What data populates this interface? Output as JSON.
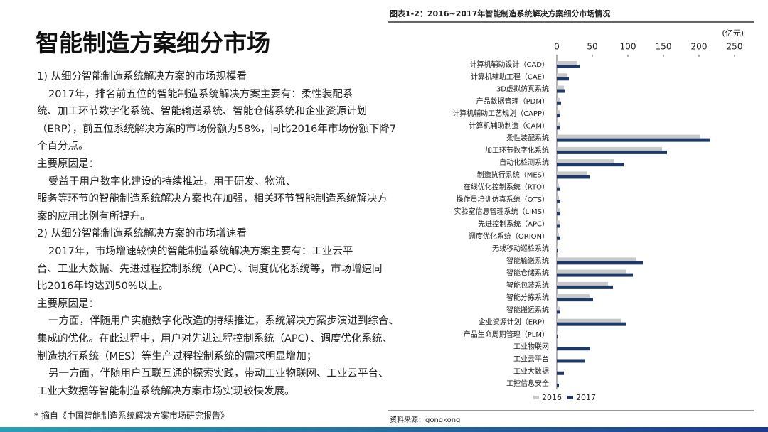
{
  "title": "智能制造方案细分市场",
  "body": {
    "lines": [
      "1) 从细分智能制造系统解决方案的市场规模看",
      "2017年，排名前五位的智能制造系统解决方案主要有：柔性装配系",
      "统、加工环节数字化系统、智能输送系统、智能仓储系统和企业资源计划",
      "（ERP），前五位系统解决方案的市场份额为58%，同比2016年市场份额下降7",
      "个百分点。",
      "主要原因是：",
      "受益于用户数字化建设的持续推进，用于研发、物流、",
      "服务等环节的智能制造系统解决方案也在加强，相关环节智能制造系统解决方",
      "案的应用比例有所提升。",
      "2) 从细分智能制造系统解决方案的市场增速看",
      "2017年，市场增速较快的智能制造系统解决方案主要有：工业云平",
      "台、工业大数据、先进过程控制系统（APC）、调度优化系统等，市场增速同",
      "比2016年均达到50%以上。",
      "主要原因是：",
      "一方面，伴随用户实施数字化改造的持续推进，系统解决方案步演进到综合、",
      "集成的优化。在此过程中，用户对先进过程控制系统（APC）、调度优化系统、",
      "制造执行系统（MES）等生产过程控制系统的需求明显增加；",
      "另一方面，伴随用户互联互通的探索实践，带动工业物联网、工业云平台、",
      "工业大数据等智能制造系统解决方案市场实现较快发展。"
    ]
  },
  "footnote": "* 摘自《中国智能制造系统解决方案市场研究报告》",
  "chart_data": {
    "type": "hbar",
    "title": "图表1-2：2016~2017年智能制造系统解决方案细分市场情况",
    "unit": "(亿元)",
    "source": "资料来源：gongkong",
    "categories": [
      "计算机辅助设计（CAD）",
      "计算机辅助工程（CAE）",
      "3D虚拟仿真系统",
      "产品数据管理（PDM）",
      "计算机辅助工艺规划（CAPP）",
      "计算机辅助制造（CAM）",
      "柔性装配系统",
      "加工环节数字化系统",
      "自动化检测系统",
      "制造执行系统（MES）",
      "在线优化控制系统（RTO）",
      "操作员培训仿真系统（OTS）",
      "实验室信息管理系统（LIMS）",
      "先进控制系统（APC）",
      "调度优化系统（ORION）",
      "无线移动巡检系统",
      "智能输送系统",
      "智能仓储系统",
      "智能包装系统",
      "智能分拣系统",
      "智能搬运系统",
      "企业资源计划（ERP）",
      "产品生命周期管理（PLM）",
      "工业物联网",
      "工业云平台",
      "工业大数据",
      "工控信息安全"
    ],
    "series": [
      {
        "name": "2016",
        "color": "#c9c9c9",
        "values": [
          28,
          14,
          10,
          5,
          4,
          4,
          202,
          148,
          80,
          42,
          3,
          3,
          4,
          4,
          3,
          1,
          112,
          98,
          72,
          46,
          4,
          90,
          1,
          0,
          0,
          0,
          0
        ]
      },
      {
        "name": "2017",
        "color": "#1f3864",
        "values": [
          32,
          17,
          12,
          6,
          5,
          5,
          216,
          155,
          94,
          46,
          4,
          4,
          5,
          5,
          4,
          2,
          121,
          107,
          79,
          51,
          5,
          97,
          1.5,
          47,
          40,
          10,
          3
        ]
      }
    ],
    "xlim": [
      0,
      250
    ],
    "xticks": [
      0,
      50,
      100,
      150,
      200,
      250
    ]
  }
}
